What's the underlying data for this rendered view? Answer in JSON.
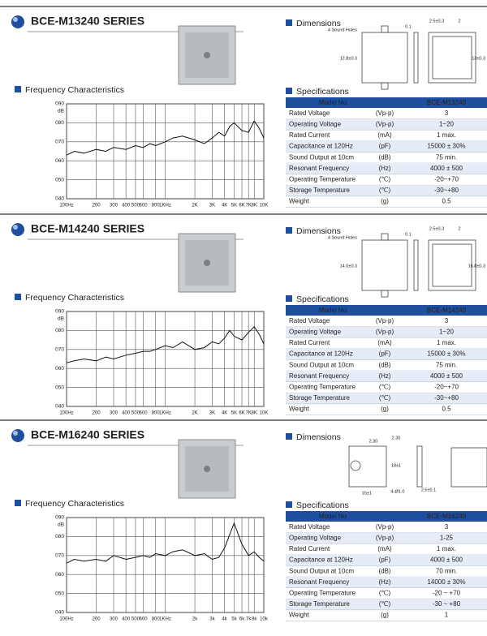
{
  "sections": [
    {
      "title": "BCE-M13240 SERIES",
      "freq": {
        "title": "Frequency Characteristics",
        "ylabel": "dB",
        "xlim": [
          100,
          10000
        ],
        "ylim": [
          40,
          90
        ],
        "log_x": true,
        "yticks": [
          {
            "value": 90,
            "label": "090"
          },
          {
            "value": 80,
            "label": "080"
          },
          {
            "value": 70,
            "label": "070"
          },
          {
            "value": 60,
            "label": "060"
          },
          {
            "value": 50,
            "label": "050"
          },
          {
            "value": 40,
            "label": "040"
          }
        ],
        "xticks": [
          {
            "value": 100,
            "label": "100Hz"
          },
          200,
          300,
          400,
          500,
          600,
          800,
          {
            "value": 1000,
            "label": "1KHz"
          },
          {
            "value": 2000,
            "label": "2K"
          },
          {
            "value": 3000,
            "label": "3K"
          },
          {
            "value": 4000,
            "label": "4K"
          },
          {
            "value": 5000,
            "label": "5K"
          },
          {
            "value": 6000,
            "label": "6K"
          },
          {
            "value": 7000,
            "label": "7K"
          },
          {
            "value": 8000,
            "label": "8K"
          },
          {
            "value": 10000,
            "label": "10K"
          }
        ],
        "x": [
          100,
          120,
          150,
          200,
          250,
          300,
          400,
          500,
          600,
          700,
          800,
          1000,
          1200,
          1500,
          2000,
          2500,
          3000,
          3500,
          4000,
          4500,
          5000,
          6000,
          7000,
          8000,
          9000,
          10000
        ],
        "values": [
          63,
          65,
          64,
          66,
          65,
          67,
          66,
          68,
          67,
          69,
          68,
          70,
          72,
          73,
          71,
          69,
          72,
          75,
          73,
          78,
          80,
          76,
          75,
          81,
          77,
          72
        ]
      },
      "dimensions": {
        "title": "Dimensions",
        "labels": [
          "4 Sound Holes",
          "0.1",
          "2.5±0.3",
          "2",
          "12.8±0.3",
          "13±0.3"
        ]
      },
      "specs": {
        "title": "Specifications",
        "header": [
          "Model No",
          "BCE-M13240"
        ],
        "rows": [
          [
            "Rated Voltage",
            "(Vp-p)",
            "3"
          ],
          [
            "Operating Voltage",
            "(Vp-p)",
            "1~20"
          ],
          [
            "Rated Current",
            "(mA)",
            "1 max."
          ],
          [
            "Capacitance at 120Hz",
            "(pF)",
            "15000 ± 30%"
          ],
          [
            "Sound Output at 10cm",
            "(dB)",
            "75 min."
          ],
          [
            "Resonant Frequency",
            "(Hz)",
            "4000 ± 500"
          ],
          [
            "Operating Temperature",
            "(℃)",
            "-20~+70"
          ],
          [
            "Storage Temperature",
            "(℃)",
            "-30~+80"
          ],
          [
            "Weight",
            "(g)",
            "0.5"
          ]
        ]
      }
    },
    {
      "title": "BCE-M14240 SERIES",
      "freq": {
        "title": "Frequency Characteristics",
        "ylabel": "dB",
        "xlim": [
          100,
          10000
        ],
        "ylim": [
          40,
          90
        ],
        "log_x": true,
        "yticks": [
          {
            "value": 90,
            "label": "090"
          },
          {
            "value": 80,
            "label": "080"
          },
          {
            "value": 70,
            "label": "070"
          },
          {
            "value": 60,
            "label": "060"
          },
          {
            "value": 50,
            "label": "050"
          },
          {
            "value": 40,
            "label": "040"
          }
        ],
        "xticks": [
          {
            "value": 100,
            "label": "100Hz"
          },
          200,
          300,
          400,
          500,
          600,
          800,
          {
            "value": 1000,
            "label": "1KHz"
          },
          {
            "value": 2000,
            "label": "2K"
          },
          {
            "value": 3000,
            "label": "3K"
          },
          {
            "value": 4000,
            "label": "4K"
          },
          {
            "value": 5000,
            "label": "5K"
          },
          {
            "value": 6000,
            "label": "6K"
          },
          {
            "value": 7000,
            "label": "7K"
          },
          {
            "value": 8000,
            "label": "8K"
          },
          {
            "value": 10000,
            "label": "10K"
          }
        ],
        "x": [
          100,
          120,
          150,
          200,
          250,
          300,
          400,
          500,
          600,
          700,
          800,
          1000,
          1200,
          1500,
          2000,
          2500,
          3000,
          3500,
          4000,
          4500,
          5000,
          6000,
          7000,
          8000,
          9000,
          10000
        ],
        "values": [
          63,
          64,
          65,
          64,
          66,
          65,
          67,
          68,
          69,
          69,
          70,
          72,
          71,
          74,
          70,
          71,
          74,
          73,
          76,
          80,
          77,
          75,
          79,
          82,
          78,
          73
        ]
      },
      "dimensions": {
        "title": "Dimensions",
        "labels": [
          "4 Sound Holes",
          "0.1",
          "2.5±0.3",
          "2",
          "14.0±0.3",
          "16.8±0.3"
        ]
      },
      "specs": {
        "title": "Specifications",
        "header": [
          "Model No",
          "BCE-M14240"
        ],
        "rows": [
          [
            "Rated Voltage",
            "(Vp-p)",
            "3"
          ],
          [
            "Operating Voltage",
            "(Vp-p)",
            "1~20"
          ],
          [
            "Rated Current",
            "(mA)",
            "1 max."
          ],
          [
            "Capacitance at 120Hz",
            "(pF)",
            "15000 ± 30%"
          ],
          [
            "Sound Output at 10cm",
            "(dB)",
            "75 min."
          ],
          [
            "Resonant Frequency",
            "(Hz)",
            "4000 ± 500"
          ],
          [
            "Operating Temperature",
            "(℃)",
            "-20~+70"
          ],
          [
            "Storage Temperature",
            "(℃)",
            "-30~+80"
          ],
          [
            "Weight",
            "(g)",
            "0.5"
          ]
        ]
      }
    },
    {
      "title": "BCE-M16240 SERIES",
      "freq": {
        "title": "Frequency Characteristics",
        "ylabel": "dB",
        "xlim": [
          100,
          10000
        ],
        "ylim": [
          40,
          90
        ],
        "log_x": true,
        "yticks": [
          {
            "value": 90,
            "label": "090"
          },
          {
            "value": 80,
            "label": "080"
          },
          {
            "value": 70,
            "label": "070"
          },
          {
            "value": 60,
            "label": "060"
          },
          {
            "value": 50,
            "label": "050"
          },
          {
            "value": 40,
            "label": "040"
          }
        ],
        "xticks": [
          {
            "value": 100,
            "label": "100Hz"
          },
          200,
          300,
          400,
          500,
          600,
          800,
          {
            "value": 1000,
            "label": "1KHz"
          },
          {
            "value": 2000,
            "label": "2k"
          },
          {
            "value": 3000,
            "label": "3k"
          },
          {
            "value": 4000,
            "label": "4k"
          },
          {
            "value": 5000,
            "label": "5k"
          },
          {
            "value": 6000,
            "label": "6k"
          },
          {
            "value": 7000,
            "label": "7k"
          },
          {
            "value": 8000,
            "label": "8k"
          },
          {
            "value": 10000,
            "label": "10k"
          }
        ],
        "x": [
          100,
          120,
          150,
          200,
          250,
          300,
          400,
          500,
          600,
          700,
          800,
          1000,
          1200,
          1500,
          2000,
          2500,
          3000,
          3500,
          4000,
          4500,
          5000,
          6000,
          7000,
          8000,
          9000,
          10000
        ],
        "values": [
          66,
          68,
          67,
          68,
          67,
          70,
          68,
          69,
          70,
          69,
          71,
          70,
          72,
          73,
          70,
          71,
          68,
          69,
          74,
          81,
          87,
          76,
          70,
          72,
          69,
          67
        ]
      },
      "dimensions": {
        "title": "Dimensions",
        "labels": [
          "2.30",
          "2.30",
          "18±1",
          "16±1",
          "4-Ø1.0",
          "2.5±0.1"
        ]
      },
      "specs": {
        "title": "Specifications",
        "header": [
          "Model No",
          "BCE-M16240"
        ],
        "rows": [
          [
            "Rated Voltage",
            "(Vp-p)",
            "3"
          ],
          [
            "Operating Voltage",
            "(Vp-p)",
            "1-25"
          ],
          [
            "Rated Current",
            "(mA)",
            "1 max."
          ],
          [
            "Capacitance at 120Hz",
            "(pF)",
            "4000 ± 500"
          ],
          [
            "Sound Output at 10cm",
            "(dB)",
            "70 min."
          ],
          [
            "Resonant Frequency",
            "(Hz)",
            "14000 ± 30%"
          ],
          [
            "Operating Temperature",
            "(℃)",
            "-20 ~ +70"
          ],
          [
            "Storage Temperature",
            "(℃)",
            "-30 ~ +80"
          ],
          [
            "Weight",
            "(g)",
            "1"
          ]
        ]
      }
    }
  ]
}
